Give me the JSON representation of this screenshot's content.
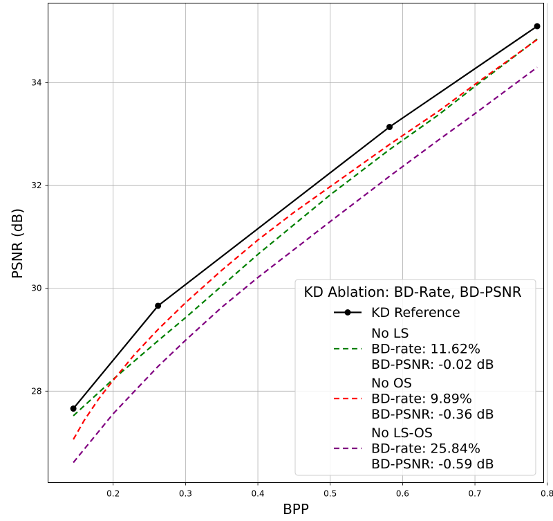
{
  "chart_data": {
    "type": "line",
    "title": "",
    "xlabel": "BPP",
    "ylabel": "PSNR (dB)",
    "xlim": [
      0.11,
      0.795
    ],
    "ylim": [
      26.22,
      35.55
    ],
    "xticks": [
      0.2,
      0.3,
      0.4,
      0.5,
      0.6,
      0.7,
      0.8
    ],
    "xtick_labels": [
      "0.2",
      "0.3",
      "0.4",
      "0.5",
      "0.6",
      "0.7",
      "0.8"
    ],
    "yticks": [
      28,
      30,
      32,
      34
    ],
    "ytick_labels": [
      "28",
      "30",
      "32",
      "34"
    ],
    "grid": true,
    "legend": {
      "title": "KD Ablation: BD-Rate, BD-PSNR",
      "position": "lower-right"
    },
    "series": [
      {
        "name": "KD Reference",
        "label_lines": [
          "KD Reference"
        ],
        "color": "#000000",
        "style": "solid",
        "markers": true,
        "x": [
          0.145,
          0.262,
          0.582,
          0.786
        ],
        "y": [
          27.66,
          29.66,
          33.14,
          35.1
        ]
      },
      {
        "name": "No LS",
        "label_lines": [
          "No LS",
          "BD-rate: 11.62%",
          "BD-PSNR: -0.02 dB"
        ],
        "color": "#008000",
        "style": "dashed",
        "markers": false,
        "x": [
          0.145,
          0.2,
          0.262,
          0.3,
          0.4,
          0.5,
          0.582,
          0.65,
          0.7,
          0.786
        ],
        "y": [
          27.52,
          28.23,
          28.98,
          29.43,
          30.66,
          31.82,
          32.7,
          33.38,
          33.93,
          34.85
        ]
      },
      {
        "name": "No OS",
        "label_lines": [
          "No OS",
          "BD-rate: 9.89%",
          "BD-PSNR: -0.36 dB"
        ],
        "color": "#ff0000",
        "style": "dashed",
        "markers": false,
        "x": [
          0.145,
          0.16,
          0.18,
          0.2,
          0.23,
          0.262,
          0.3,
          0.35,
          0.4,
          0.45,
          0.5,
          0.582,
          0.65,
          0.7,
          0.786
        ],
        "y": [
          27.06,
          27.43,
          27.85,
          28.21,
          28.72,
          29.2,
          29.72,
          30.35,
          30.94,
          31.48,
          31.98,
          32.8,
          33.45,
          33.97,
          34.84
        ]
      },
      {
        "name": "No LS-OS",
        "label_lines": [
          "No LS-OS",
          "BD-rate: 25.84%",
          "BD-PSNR: -0.59 dB"
        ],
        "color": "#800080",
        "style": "dashed",
        "markers": false,
        "x": [
          0.145,
          0.2,
          0.262,
          0.3,
          0.35,
          0.4,
          0.5,
          0.582,
          0.65,
          0.7,
          0.786
        ],
        "y": [
          26.61,
          27.56,
          28.48,
          28.99,
          29.63,
          30.21,
          31.3,
          32.18,
          32.89,
          33.4,
          34.3
        ]
      }
    ]
  }
}
